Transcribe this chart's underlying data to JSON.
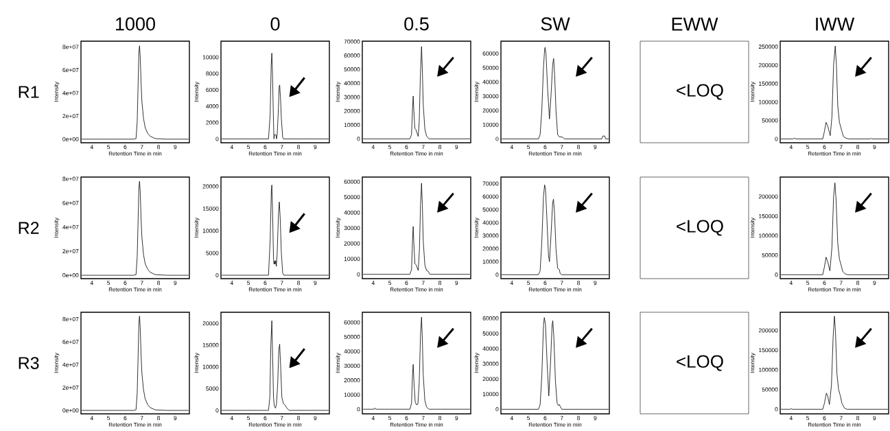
{
  "chart_data": [
    {
      "type": "line",
      "title": "1000",
      "annotations": [
        "R1"
      ],
      "xlabel": "Retention Time in min",
      "ylabel": "Intensity",
      "color": "#000000",
      "xlim": [
        3.35,
        9.85
      ],
      "xticks": [
        4,
        5,
        6,
        7,
        8,
        9
      ],
      "ylim": [
        -3100000,
        85000000
      ],
      "yticks": [
        {
          "value": 0,
          "label": "0e+00"
        },
        {
          "value": 20000000,
          "label": "2e+07"
        },
        {
          "value": 40000000,
          "label": "4e+07"
        },
        {
          "value": 60000000,
          "label": "6e+07"
        },
        {
          "value": 80000000,
          "label": "8e+07"
        }
      ],
      "x": [
        3.4,
        6.5,
        6.65,
        6.72,
        6.78,
        6.82,
        6.86,
        6.9,
        6.95,
        7.0,
        7.1,
        7.2,
        7.35,
        7.5,
        7.8,
        8.5,
        9.8
      ],
      "values": [
        0,
        0,
        500000,
        15000000,
        50000000,
        75000000,
        81000000,
        72000000,
        50000000,
        33000000,
        18000000,
        10000000,
        5000000,
        2500000,
        500000,
        0,
        0
      ]
    },
    {
      "type": "line",
      "title": "0",
      "xlabel": "Retention Time in min",
      "ylabel": "Intensity",
      "color": "#000000",
      "xlim": [
        3.35,
        9.85
      ],
      "xticks": [
        4,
        5,
        6,
        7,
        8,
        9
      ],
      "ylim": [
        -470,
        11970
      ],
      "yticks": [
        0,
        2000,
        4000,
        6000,
        8000,
        10000
      ],
      "x": [
        3.4,
        6.2,
        6.3,
        6.36,
        6.4,
        6.44,
        6.5,
        6.53,
        6.55,
        6.65,
        6.68,
        6.72,
        6.78,
        6.84,
        6.87,
        6.92,
        6.97,
        7.05,
        7.1,
        9.8
      ],
      "values": [
        0,
        0,
        3000,
        9000,
        10500,
        8000,
        2000,
        0,
        500,
        500,
        0,
        500,
        3000,
        6400,
        6600,
        5000,
        2500,
        200,
        0,
        0
      ]
    },
    {
      "type": "line",
      "title": "0.5",
      "xlabel": "Retention Time in min",
      "ylabel": "Intensity",
      "color": "#000000",
      "xlim": [
        3.35,
        9.85
      ],
      "xticks": [
        4,
        5,
        6,
        7,
        8,
        9
      ],
      "ylim": [
        -2800,
        70300
      ],
      "yticks": [
        0,
        10000,
        20000,
        30000,
        40000,
        50000,
        60000,
        70000
      ],
      "x": [
        3.4,
        6.2,
        6.3,
        6.36,
        6.4,
        6.44,
        6.5,
        6.56,
        6.62,
        6.7,
        6.76,
        6.83,
        6.9,
        6.95,
        7.0,
        7.1,
        7.2,
        7.35,
        9.8
      ],
      "values": [
        0,
        0,
        3000,
        22000,
        30800,
        20000,
        7500,
        6700,
        4500,
        1800,
        12000,
        45000,
        66400,
        50000,
        25000,
        7000,
        2000,
        0,
        0
      ]
    },
    {
      "type": "line",
      "title": "SW",
      "xlabel": "Retention Time in min",
      "ylabel": "Intensity",
      "color": "#000000",
      "xlim": [
        3.35,
        9.85
      ],
      "xticks": [
        4,
        5,
        6,
        7,
        8,
        9
      ],
      "ylim": [
        -2700,
        68700
      ],
      "yticks": [
        0,
        10000,
        20000,
        30000,
        40000,
        50000,
        60000
      ],
      "x": [
        3.4,
        5.6,
        5.7,
        5.8,
        5.9,
        5.97,
        6.0,
        6.05,
        6.15,
        6.26,
        6.35,
        6.45,
        6.51,
        6.57,
        6.65,
        6.75,
        6.85,
        7.05,
        7.15,
        9.4,
        9.45,
        9.58,
        9.62,
        9.8
      ],
      "values": [
        0,
        0,
        3000,
        20000,
        50000,
        63000,
        64400,
        60000,
        35000,
        14000,
        30000,
        52000,
        56500,
        45000,
        20000,
        3000,
        1500,
        1200,
        0,
        0,
        2000,
        2000,
        0,
        0
      ]
    },
    {
      "type": "other",
      "title": "EWW",
      "annotations": [
        "<LOQ"
      ]
    },
    {
      "type": "line",
      "title": "IWW",
      "xlabel": "Retention Time in min",
      "ylabel": "Intensity",
      "color": "#000000",
      "xlim": [
        3.35,
        9.85
      ],
      "xticks": [
        4,
        5,
        6,
        7,
        8,
        9
      ],
      "ylim": [
        -10400,
        265000
      ],
      "yticks": [
        0,
        50000,
        100000,
        150000,
        200000,
        250000
      ],
      "x": [
        3.4,
        4.1,
        4.2,
        4.3,
        5.9,
        6.0,
        6.1,
        6.2,
        6.35,
        6.45,
        6.55,
        6.65,
        6.72,
        6.8,
        6.9,
        6.97,
        7.05,
        7.15,
        7.3,
        7.45,
        8.75,
        8.8,
        8.85,
        9.8
      ],
      "values": [
        0,
        0,
        2000,
        0,
        0,
        20000,
        45000,
        35000,
        9000,
        60000,
        200000,
        252000,
        200000,
        90000,
        45000,
        34000,
        20000,
        6000,
        2000,
        0,
        0,
        2000,
        0,
        0
      ]
    },
    {
      "type": "line",
      "annotations": [
        "R2"
      ],
      "xlabel": "Retention Time in min",
      "ylabel": "Intensity",
      "color": "#000000",
      "xlim": [
        3.35,
        9.85
      ],
      "xticks": [
        4,
        5,
        6,
        7,
        8,
        9
      ],
      "ylim": [
        -2800000,
        81500000
      ],
      "yticks": [
        {
          "value": 0,
          "label": "0e+00"
        },
        {
          "value": 20000000,
          "label": "2e+07"
        },
        {
          "value": 40000000,
          "label": "4e+07"
        },
        {
          "value": 60000000,
          "label": "6e+07"
        },
        {
          "value": 80000000,
          "label": "8e+07"
        }
      ],
      "x": [
        3.4,
        6.5,
        6.65,
        6.72,
        6.78,
        6.82,
        6.86,
        6.9,
        6.95,
        7.0,
        7.1,
        7.2,
        7.35,
        7.5,
        7.8,
        8.5,
        9.8
      ],
      "values": [
        0,
        0,
        500000,
        15000000,
        48000000,
        72000000,
        78000000,
        70000000,
        48000000,
        32000000,
        17000000,
        9500000,
        5000000,
        2500000,
        500000,
        0,
        0
      ]
    },
    {
      "type": "line",
      "xlabel": "Retention Time in min",
      "ylabel": "Intensity",
      "color": "#000000",
      "xlim": [
        3.35,
        9.85
      ],
      "xticks": [
        4,
        5,
        6,
        7,
        8,
        9
      ],
      "ylim": [
        -770,
        22100
      ],
      "yticks": [
        0,
        5000,
        10000,
        15000,
        20000
      ],
      "x": [
        3.4,
        6.2,
        6.3,
        6.37,
        6.4,
        6.44,
        6.5,
        6.53,
        6.56,
        6.6,
        6.63,
        6.67,
        6.72,
        6.8,
        6.85,
        6.9,
        6.97,
        7.05,
        7.12,
        9.8
      ],
      "values": [
        0,
        0,
        8000,
        19000,
        20300,
        15000,
        4000,
        2500,
        3200,
        2500,
        3300,
        2000,
        5000,
        14000,
        16500,
        13000,
        5000,
        500,
        0,
        0
      ]
    },
    {
      "type": "line",
      "xlabel": "Retention Time in min",
      "ylabel": "Intensity",
      "color": "#000000",
      "xlim": [
        3.35,
        9.85
      ],
      "xticks": [
        4,
        5,
        6,
        7,
        8,
        9
      ],
      "ylim": [
        -2800,
        63000
      ],
      "yticks": [
        0,
        10000,
        20000,
        30000,
        40000,
        50000,
        60000
      ],
      "x": [
        3.4,
        6.2,
        6.3,
        6.36,
        6.4,
        6.44,
        6.5,
        6.58,
        6.7,
        6.77,
        6.84,
        6.9,
        6.95,
        7.0,
        7.1,
        7.2,
        7.3,
        7.4,
        9.8
      ],
      "values": [
        0,
        0,
        3000,
        22000,
        31000,
        20000,
        7000,
        6000,
        2500,
        15000,
        45000,
        59000,
        45000,
        22000,
        6000,
        2500,
        2000,
        0,
        0
      ]
    },
    {
      "type": "line",
      "xlabel": "Retention Time in min",
      "ylabel": "Intensity",
      "color": "#000000",
      "xlim": [
        3.35,
        9.85
      ],
      "xticks": [
        4,
        5,
        6,
        7,
        8,
        9
      ],
      "ylim": [
        -3000,
        75000
      ],
      "yticks": [
        0,
        10000,
        20000,
        30000,
        40000,
        50000,
        60000,
        70000
      ],
      "x": [
        3.4,
        5.6,
        5.7,
        5.8,
        5.9,
        5.97,
        6.02,
        6.1,
        6.2,
        6.26,
        6.35,
        6.45,
        6.5,
        6.56,
        6.65,
        6.75,
        6.85,
        6.9,
        7.0,
        9.8
      ],
      "values": [
        0,
        0,
        3000,
        25000,
        60000,
        69000,
        66000,
        45000,
        15000,
        10000,
        30000,
        55000,
        58000,
        48000,
        20000,
        5000,
        4000,
        1000,
        0,
        0
      ]
    },
    {
      "type": "other",
      "annotations": [
        "<LOQ"
      ]
    },
    {
      "type": "line",
      "xlabel": "Retention Time in min",
      "ylabel": "Intensity",
      "color": "#000000",
      "xlim": [
        3.35,
        9.85
      ],
      "xticks": [
        4,
        5,
        6,
        7,
        8,
        9
      ],
      "ylim": [
        -10000,
        250000
      ],
      "yticks": [
        0,
        50000,
        100000,
        150000,
        200000
      ],
      "x": [
        3.4,
        5.9,
        6.0,
        6.1,
        6.2,
        6.33,
        6.45,
        6.55,
        6.63,
        6.7,
        6.8,
        6.9,
        7.0,
        7.1,
        7.25,
        7.4,
        9.8
      ],
      "values": [
        0,
        0,
        20000,
        45000,
        33000,
        10000,
        70000,
        200000,
        235000,
        190000,
        80000,
        40000,
        25000,
        8000,
        2000,
        0,
        0
      ]
    },
    {
      "type": "line",
      "annotations": [
        "R3"
      ],
      "xlabel": "Retention Time in min",
      "ylabel": "Intensity",
      "color": "#000000",
      "xlim": [
        3.35,
        9.85
      ],
      "xticks": [
        4,
        5,
        6,
        7,
        8,
        9
      ],
      "ylim": [
        -3000000,
        86000000
      ],
      "yticks": [
        {
          "value": 0,
          "label": "0e+00"
        },
        {
          "value": 20000000,
          "label": "2e+07"
        },
        {
          "value": 40000000,
          "label": "4e+07"
        },
        {
          "value": 60000000,
          "label": "6e+07"
        },
        {
          "value": 80000000,
          "label": "8e+07"
        }
      ],
      "x": [
        3.4,
        6.5,
        6.65,
        6.72,
        6.78,
        6.82,
        6.86,
        6.9,
        6.95,
        7.0,
        7.1,
        7.2,
        7.35,
        7.5,
        7.8,
        8.5,
        9.8
      ],
      "values": [
        0,
        0,
        500000,
        15000000,
        50000000,
        76000000,
        82600000,
        73000000,
        50000000,
        33000000,
        18000000,
        10000000,
        5000000,
        2500000,
        500000,
        0,
        0
      ]
    },
    {
      "type": "line",
      "xlabel": "Retention Time in min",
      "ylabel": "Intensity",
      "color": "#000000",
      "xlim": [
        3.35,
        9.85
      ],
      "xticks": [
        4,
        5,
        6,
        7,
        8,
        9
      ],
      "ylim": [
        -800,
        22550
      ],
      "yticks": [
        0,
        5000,
        10000,
        15000,
        20000
      ],
      "x": [
        3.4,
        6.2,
        6.28,
        6.34,
        6.4,
        6.45,
        6.5,
        6.55,
        6.62,
        6.68,
        6.75,
        6.82,
        6.87,
        6.93,
        7.0,
        7.1,
        7.2,
        7.3,
        7.45,
        9.8
      ],
      "values": [
        0,
        0,
        3000,
        15000,
        20600,
        12000,
        3000,
        1000,
        500,
        1500,
        6000,
        14000,
        15200,
        10000,
        3000,
        1500,
        1200,
        500,
        0,
        0
      ]
    },
    {
      "type": "line",
      "xlabel": "Retention Time in min",
      "ylabel": "Intensity",
      "color": "#000000",
      "xlim": [
        3.35,
        9.85
      ],
      "xticks": [
        4,
        5,
        6,
        7,
        8,
        9
      ],
      "ylim": [
        -3200,
        67000
      ],
      "yticks": [
        0,
        10000,
        20000,
        30000,
        40000,
        50000,
        60000
      ],
      "x": [
        3.4,
        4.05,
        4.1,
        4.15,
        6.2,
        6.3,
        6.36,
        6.4,
        6.45,
        6.52,
        6.6,
        6.68,
        6.76,
        6.84,
        6.9,
        6.95,
        7.0,
        7.1,
        7.2,
        7.35,
        9.8
      ],
      "values": [
        0,
        0,
        800,
        0,
        0,
        4000,
        24000,
        31000,
        18000,
        5000,
        3000,
        3500,
        18000,
        52000,
        63600,
        48000,
        24000,
        6000,
        1500,
        0,
        0
      ]
    },
    {
      "type": "line",
      "xlabel": "Retention Time in min",
      "ylabel": "Intensity",
      "color": "#000000",
      "xlim": [
        3.35,
        9.85
      ],
      "xticks": [
        4,
        5,
        6,
        7,
        8,
        9
      ],
      "ylim": [
        -3000,
        64000
      ],
      "yticks": [
        0,
        10000,
        20000,
        30000,
        40000,
        50000,
        60000
      ],
      "x": [
        3.4,
        5.6,
        5.7,
        5.8,
        5.9,
        5.95,
        6.02,
        6.12,
        6.22,
        6.32,
        6.42,
        6.46,
        6.52,
        6.62,
        6.72,
        6.8,
        6.85,
        6.9,
        7.0,
        9.8
      ],
      "values": [
        0,
        0,
        3000,
        22000,
        55000,
        60500,
        56000,
        30000,
        8800,
        30000,
        56000,
        58400,
        48000,
        18000,
        4000,
        2500,
        3200,
        2000,
        0,
        0
      ]
    },
    {
      "type": "other",
      "annotations": [
        "<LOQ"
      ]
    },
    {
      "type": "line",
      "xlabel": "Retention Time in min",
      "ylabel": "Intensity",
      "color": "#000000",
      "xlim": [
        3.35,
        9.85
      ],
      "xticks": [
        4,
        5,
        6,
        7,
        8,
        9
      ],
      "ylim": [
        -11600,
        246000
      ],
      "yticks": [
        0,
        50000,
        100000,
        150000,
        200000
      ],
      "x": [
        3.4,
        3.95,
        4.0,
        4.05,
        5.9,
        6.0,
        6.12,
        6.2,
        6.3,
        6.42,
        6.52,
        6.6,
        6.66,
        6.75,
        6.85,
        6.95,
        7.05,
        7.2,
        7.35,
        9.8
      ],
      "values": [
        0,
        0,
        2000,
        0,
        0,
        15000,
        41000,
        33000,
        12000,
        60000,
        180000,
        236000,
        200000,
        90000,
        50000,
        35000,
        15000,
        3000,
        0,
        0
      ]
    }
  ]
}
